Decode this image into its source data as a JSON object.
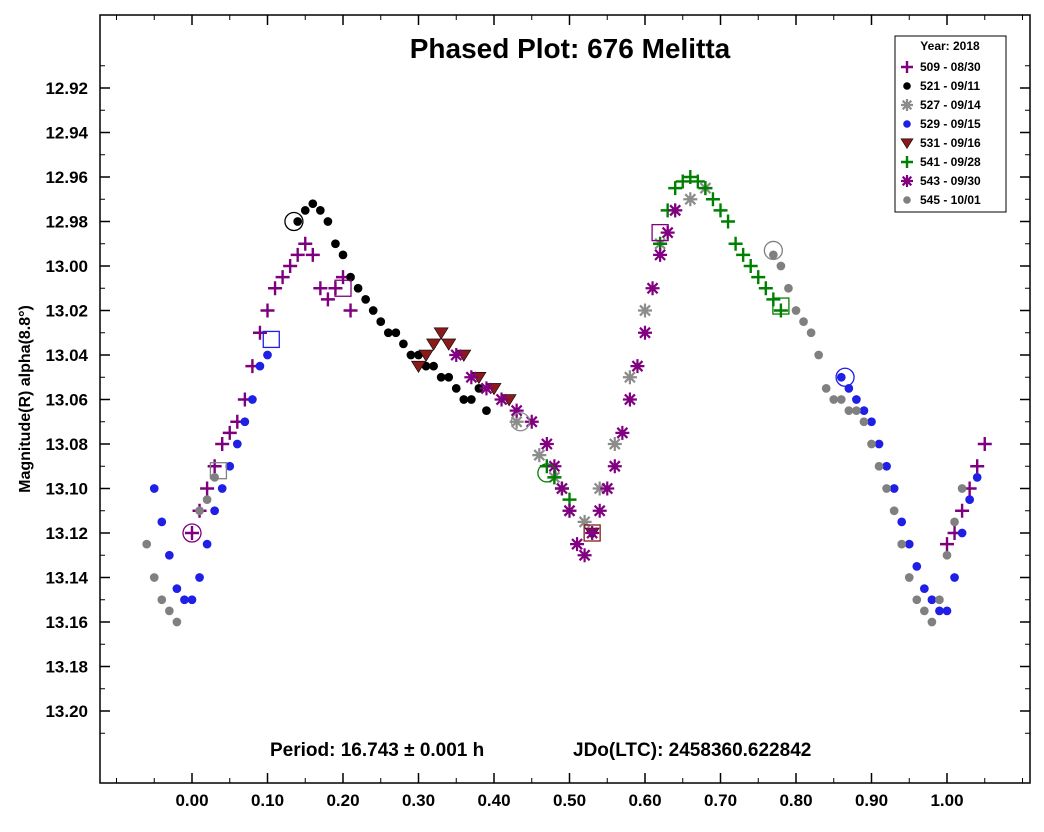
{
  "chart_data": {
    "type": "scatter",
    "title": "Phased Plot: 676 Melitta",
    "ylabel": "Magnitude(R) alpha(8.8°)",
    "xlabel": "",
    "footer_period": "Period: 16.743 ± 0.001 h",
    "footer_jd": "JDo(LTC): 2458360.622842",
    "xlim": [
      -0.12,
      1.14
    ],
    "ylim": [
      13.22,
      12.9
    ],
    "y_inverted": true,
    "x_ticks": [
      0.0,
      0.1,
      0.2,
      0.3,
      0.4,
      0.5,
      0.6,
      0.7,
      0.8,
      0.9,
      1.0
    ],
    "x_tick_labels": [
      "0.00",
      "0.10",
      "0.20",
      "0.30",
      "0.40",
      "0.50",
      "0.60",
      "0.70",
      "0.80",
      "0.90",
      "1.00"
    ],
    "y_ticks": [
      12.92,
      12.94,
      12.96,
      12.98,
      13.0,
      13.02,
      13.04,
      13.06,
      13.08,
      13.1,
      13.12,
      13.14,
      13.16,
      13.18,
      13.2
    ],
    "y_tick_labels": [
      "12.92",
      "12.94",
      "12.96",
      "12.98",
      "13.00",
      "13.02",
      "13.04",
      "13.06",
      "13.08",
      "13.10",
      "13.12",
      "13.14",
      "13.16",
      "13.18",
      "13.20"
    ],
    "legend": {
      "title": "Year: 2018",
      "placement": "top-right"
    },
    "grid": false,
    "series": [
      {
        "name": "509 - 08/30",
        "color": "#7f007f",
        "marker": "plus",
        "x": [
          0.0,
          0.01,
          0.02,
          0.03,
          0.04,
          0.05,
          0.06,
          0.07,
          0.08,
          0.09,
          0.1,
          0.11,
          0.12,
          0.13,
          0.14,
          0.15,
          0.16,
          0.17,
          0.18,
          0.19,
          0.2,
          0.21,
          1.0,
          1.01,
          1.02,
          1.03,
          1.04,
          1.05
        ],
        "y": [
          13.12,
          13.11,
          13.1,
          13.09,
          13.08,
          13.075,
          13.07,
          13.06,
          13.045,
          13.03,
          13.02,
          13.01,
          13.005,
          13.0,
          12.995,
          12.99,
          12.995,
          13.01,
          13.015,
          13.01,
          13.005,
          13.02,
          13.125,
          13.12,
          13.11,
          13.1,
          13.09,
          13.08
        ]
      },
      {
        "name": "521 - 09/11",
        "color": "#000000",
        "marker": "circle",
        "x": [
          0.14,
          0.15,
          0.16,
          0.17,
          0.18,
          0.19,
          0.2,
          0.21,
          0.22,
          0.23,
          0.24,
          0.25,
          0.26,
          0.27,
          0.28,
          0.29,
          0.3,
          0.31,
          0.32,
          0.33,
          0.34,
          0.35,
          0.36,
          0.37,
          0.38,
          0.39
        ],
        "y": [
          12.98,
          12.975,
          12.972,
          12.975,
          12.98,
          12.99,
          12.995,
          13.005,
          13.01,
          13.015,
          13.02,
          13.025,
          13.03,
          13.03,
          13.035,
          13.04,
          13.04,
          13.045,
          13.045,
          13.05,
          13.05,
          13.055,
          13.06,
          13.06,
          13.055,
          13.065
        ]
      },
      {
        "name": "527 - 09/14",
        "color": "#8c8c8c",
        "marker": "asterisk",
        "x": [
          0.43,
          0.46,
          0.48,
          0.5,
          0.52,
          0.54,
          0.56,
          0.58,
          0.6,
          0.62,
          0.64,
          0.66,
          0.68
        ],
        "y": [
          13.07,
          13.085,
          13.095,
          13.11,
          13.115,
          13.1,
          13.08,
          13.05,
          13.02,
          12.99,
          12.975,
          12.97,
          12.965
        ]
      },
      {
        "name": "529 - 09/15",
        "color": "#1f1fe6",
        "marker": "circle",
        "x": [
          -0.05,
          -0.04,
          -0.03,
          -0.02,
          -0.01,
          0.0,
          0.01,
          0.02,
          0.03,
          0.04,
          0.05,
          0.06,
          0.07,
          0.08,
          0.09,
          0.1,
          0.86,
          0.87,
          0.88,
          0.89,
          0.9,
          0.91,
          0.92,
          0.93,
          0.94,
          0.95,
          0.96,
          0.97,
          0.98,
          0.99,
          1.0,
          1.01,
          1.02,
          1.03,
          1.04
        ],
        "y": [
          13.1,
          13.115,
          13.13,
          13.145,
          13.15,
          13.15,
          13.14,
          13.125,
          13.11,
          13.1,
          13.09,
          13.08,
          13.07,
          13.06,
          13.045,
          13.04,
          13.05,
          13.055,
          13.06,
          13.065,
          13.07,
          13.08,
          13.09,
          13.1,
          13.115,
          13.125,
          13.135,
          13.145,
          13.15,
          13.155,
          13.155,
          13.14,
          13.12,
          13.105,
          13.095
        ]
      },
      {
        "name": "531 - 09/16",
        "color": "#8b1a1a",
        "marker": "triangle-down",
        "x": [
          0.3,
          0.31,
          0.32,
          0.33,
          0.34,
          0.36,
          0.38,
          0.4,
          0.42,
          0.53
        ],
        "y": [
          13.045,
          13.04,
          13.035,
          13.03,
          13.035,
          13.04,
          13.05,
          13.055,
          13.06,
          13.12
        ]
      },
      {
        "name": "541 - 09/28",
        "color": "#008000",
        "marker": "plus",
        "x": [
          0.47,
          0.48,
          0.49,
          0.5,
          0.62,
          0.63,
          0.64,
          0.65,
          0.66,
          0.67,
          0.68,
          0.69,
          0.7,
          0.71,
          0.72,
          0.73,
          0.74,
          0.75,
          0.76,
          0.77,
          0.78
        ],
        "y": [
          13.09,
          13.095,
          13.1,
          13.105,
          12.99,
          12.975,
          12.965,
          12.962,
          12.96,
          12.962,
          12.965,
          12.97,
          12.975,
          12.98,
          12.99,
          12.995,
          13.0,
          13.005,
          13.01,
          13.015,
          13.02
        ]
      },
      {
        "name": "543 - 09/30",
        "color": "#800080",
        "marker": "asterisk",
        "x": [
          0.35,
          0.37,
          0.39,
          0.41,
          0.43,
          0.45,
          0.47,
          0.48,
          0.49,
          0.5,
          0.51,
          0.52,
          0.53,
          0.54,
          0.55,
          0.56,
          0.57,
          0.58,
          0.59,
          0.6,
          0.61,
          0.62,
          0.63,
          0.64
        ],
        "y": [
          13.04,
          13.05,
          13.055,
          13.06,
          13.065,
          13.07,
          13.08,
          13.09,
          13.1,
          13.11,
          13.125,
          13.13,
          13.12,
          13.11,
          13.1,
          13.09,
          13.075,
          13.06,
          13.045,
          13.03,
          13.01,
          12.995,
          12.985,
          12.975
        ]
      },
      {
        "name": "545 - 10/01",
        "color": "#808080",
        "marker": "circle",
        "x": [
          -0.06,
          -0.05,
          -0.04,
          -0.03,
          -0.02,
          0.01,
          0.02,
          0.03,
          0.77,
          0.78,
          0.79,
          0.8,
          0.81,
          0.82,
          0.83,
          0.84,
          0.85,
          0.86,
          0.87,
          0.88,
          0.89,
          0.9,
          0.91,
          0.92,
          0.93,
          0.94,
          0.95,
          0.96,
          0.97,
          0.98,
          0.99,
          1.0,
          1.01,
          1.02
        ],
        "y": [
          13.125,
          13.14,
          13.15,
          13.155,
          13.16,
          13.11,
          13.105,
          13.095,
          12.995,
          13.0,
          13.01,
          13.02,
          13.025,
          13.03,
          13.04,
          13.055,
          13.06,
          13.06,
          13.065,
          13.065,
          13.07,
          13.08,
          13.09,
          13.1,
          13.11,
          13.125,
          13.14,
          13.15,
          13.155,
          13.16,
          13.15,
          13.13,
          13.115,
          13.1
        ]
      }
    ],
    "highlighted_points": [
      {
        "series_index": 0,
        "x": 0.0,
        "y": 13.12,
        "shape": "circle"
      },
      {
        "series_index": 0,
        "x": 0.2,
        "y": 13.01,
        "shape": "square"
      },
      {
        "series_index": 1,
        "x": 0.135,
        "y": 12.98,
        "shape": "circle"
      },
      {
        "series_index": 2,
        "x": 0.435,
        "y": 13.07,
        "shape": "circle"
      },
      {
        "series_index": 3,
        "x": 0.105,
        "y": 13.033,
        "shape": "square"
      },
      {
        "series_index": 3,
        "x": 0.865,
        "y": 13.05,
        "shape": "circle"
      },
      {
        "series_index": 4,
        "x": 0.53,
        "y": 13.12,
        "shape": "square"
      },
      {
        "series_index": 5,
        "x": 0.47,
        "y": 13.093,
        "shape": "circle"
      },
      {
        "series_index": 5,
        "x": 0.78,
        "y": 13.018,
        "shape": "square"
      },
      {
        "series_index": 6,
        "x": 0.62,
        "y": 12.985,
        "shape": "square"
      },
      {
        "series_index": 7,
        "x": 0.77,
        "y": 12.993,
        "shape": "circle"
      },
      {
        "series_index": 7,
        "x": 0.035,
        "y": 13.092,
        "shape": "square"
      }
    ]
  }
}
